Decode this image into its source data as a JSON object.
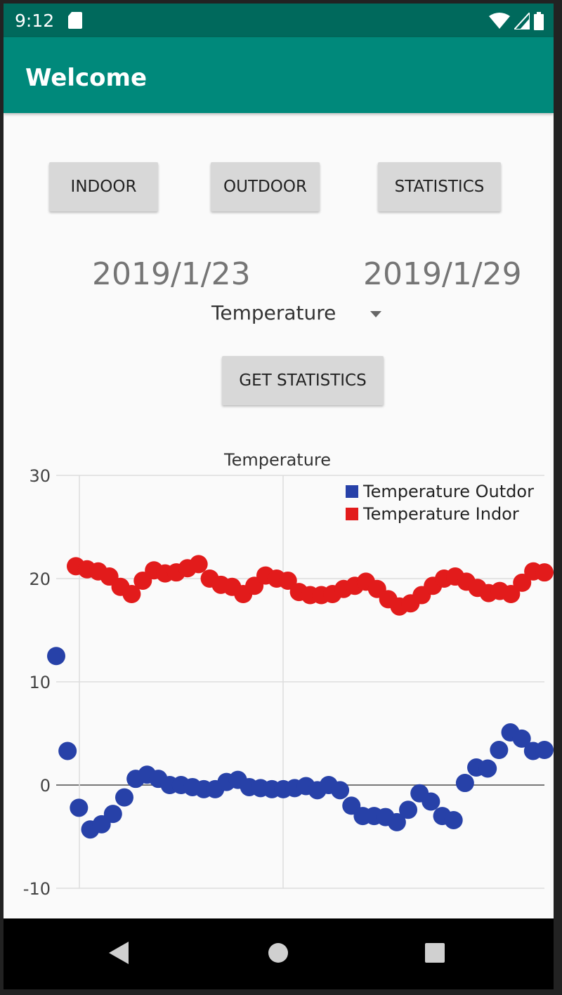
{
  "status_bar": {
    "time": "9:12"
  },
  "app_bar": {
    "title": "Welcome"
  },
  "buttons": {
    "indoor": "INDOOR",
    "outdoor": "OUTDOOR",
    "statistics": "STATISTICS",
    "get_statistics": "GET STATISTICS"
  },
  "dates": {
    "start": "2019/1/23",
    "end": "2019/1/29"
  },
  "spinner": {
    "selected": "Temperature"
  },
  "colors": {
    "status_bar": "#00695c",
    "app_bar": "#00897b",
    "outdoor_series": "#2741a8",
    "indoor_series": "#e21b1b"
  },
  "chart_data": {
    "type": "scatter",
    "title": "Temperature",
    "ylim": [
      -10,
      30
    ],
    "y_ticks": [
      "30",
      "20",
      "10",
      "0",
      "-10"
    ],
    "legend_position": "top-right",
    "grid": true,
    "series": [
      {
        "name": "Temperature Outdor",
        "values": [
          12.5,
          3.3,
          -2.2,
          -4.3,
          -3.8,
          -2.8,
          -1.2,
          0.6,
          1.0,
          0.6,
          0.0,
          0.0,
          -0.2,
          -0.4,
          -0.4,
          0.3,
          0.5,
          -0.2,
          -0.3,
          -0.4,
          -0.4,
          -0.3,
          -0.1,
          -0.5,
          0.0,
          -0.5,
          -2.0,
          -3.0,
          -3.0,
          -3.1,
          -3.6,
          -2.4,
          -0.8,
          -1.6,
          -3.0,
          -3.4,
          0.2,
          1.7,
          1.6,
          3.4,
          5.1,
          4.5,
          3.3,
          3.4
        ]
      },
      {
        "name": "Temperature Indor",
        "values": [
          21.2,
          20.9,
          20.7,
          20.2,
          19.2,
          18.5,
          19.8,
          20.8,
          20.5,
          20.6,
          21.0,
          21.4,
          20.0,
          19.4,
          19.2,
          18.5,
          19.3,
          20.3,
          20.0,
          19.8,
          18.7,
          18.4,
          18.4,
          18.5,
          19.0,
          19.3,
          19.7,
          19.0,
          18.0,
          17.3,
          17.6,
          18.4,
          19.3,
          20.0,
          20.2,
          19.7,
          19.1,
          18.6,
          18.8,
          18.5,
          19.6,
          20.7,
          20.6
        ]
      }
    ]
  }
}
